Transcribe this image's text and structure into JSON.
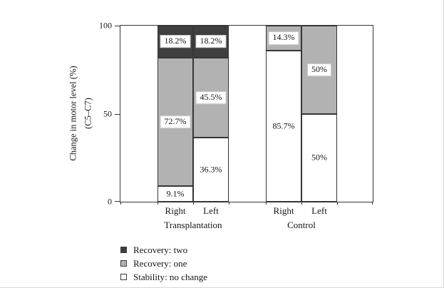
{
  "chart_data": {
    "type": "stacked_bar",
    "title": "",
    "ylabel_lines": [
      "Change in motor level (%)",
      "(C5–C7)"
    ],
    "ylim": [
      0,
      100
    ],
    "yticks": [
      0,
      50,
      100
    ],
    "ytick_labels": [
      "0",
      "50",
      "100"
    ],
    "grid": false,
    "axis_color": "#363636",
    "series_colors": {
      "Recovery: two": "#3f3f3f",
      "Recovery: one": "#b2b2b2",
      "Stability: no change": "#ffffff"
    },
    "groups": [
      {
        "label": "Transplantation",
        "bars": [
          {
            "label": "Right",
            "segments": [
              {
                "series": "Stability: no change",
                "value": 9.1,
                "label": "9.1%",
                "boxed": false
              },
              {
                "series": "Recovery: one",
                "value": 72.7,
                "label": "72.7%",
                "boxed": true
              },
              {
                "series": "Recovery: two",
                "value": 18.2,
                "label": "18.2%",
                "boxed": true
              }
            ]
          },
          {
            "label": "Left",
            "segments": [
              {
                "series": "Stability: no change",
                "value": 36.3,
                "label": "36.3%",
                "boxed": false
              },
              {
                "series": "Recovery: one",
                "value": 45.5,
                "label": "45.5%",
                "boxed": true
              },
              {
                "series": "Recovery: two",
                "value": 18.2,
                "label": "18.2%",
                "boxed": true
              }
            ]
          }
        ]
      },
      {
        "label": "Control",
        "bars": [
          {
            "label": "Right",
            "segments": [
              {
                "series": "Stability: no change",
                "value": 85.7,
                "label": "85.7%",
                "boxed": false
              },
              {
                "series": "Recovery: one",
                "value": 14.3,
                "label": "14.3%",
                "boxed": true
              }
            ]
          },
          {
            "label": "Left",
            "segments": [
              {
                "series": "Stability: no change",
                "value": 50,
                "label": "50%",
                "boxed": false
              },
              {
                "series": "Recovery: one",
                "value": 50,
                "label": "50%",
                "boxed": true
              }
            ]
          }
        ]
      }
    ],
    "legend": [
      {
        "label": "Recovery: two",
        "color": "#3f3f3f"
      },
      {
        "label": "Recovery: one",
        "color": "#b2b2b2"
      },
      {
        "label": "Stability: no change",
        "color": "#ffffff"
      }
    ],
    "legend_position": "bottom-left"
  }
}
